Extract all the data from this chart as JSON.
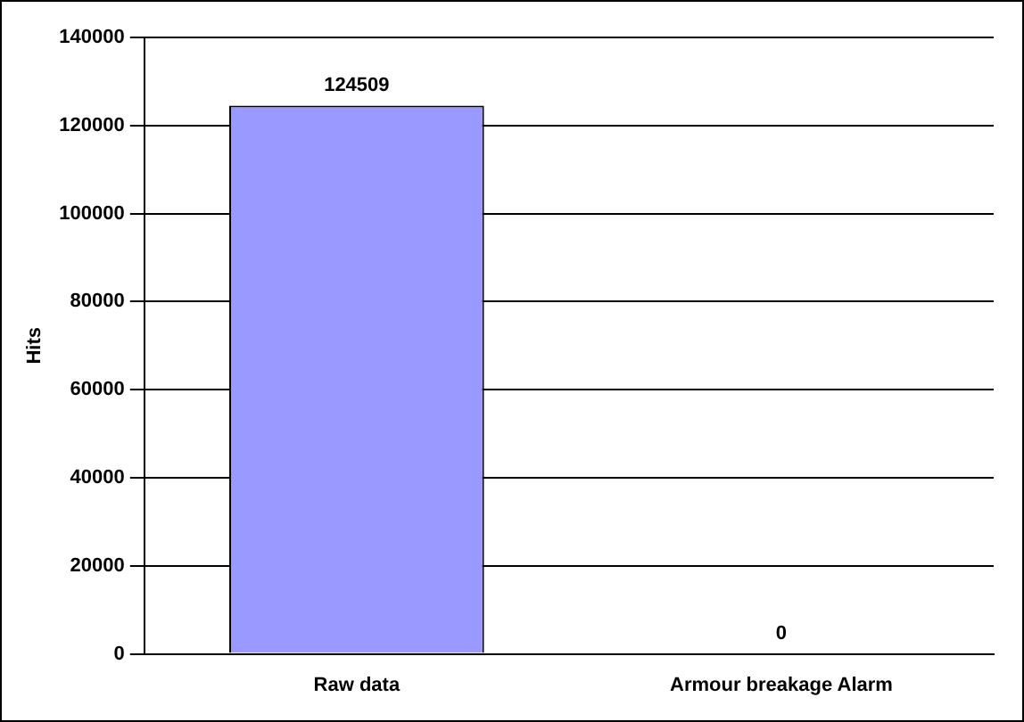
{
  "chart_data": {
    "type": "bar",
    "ylabel": "Hits",
    "categories": [
      "Raw data",
      "Armour breakage Alarm"
    ],
    "values": [
      124509,
      0
    ],
    "color": "#9999ff",
    "ylim": [
      0,
      140000
    ],
    "yticks": [
      0,
      20000,
      40000,
      60000,
      80000,
      100000,
      120000,
      140000
    ],
    "grid": "y",
    "legend": false,
    "data_labels": true
  }
}
